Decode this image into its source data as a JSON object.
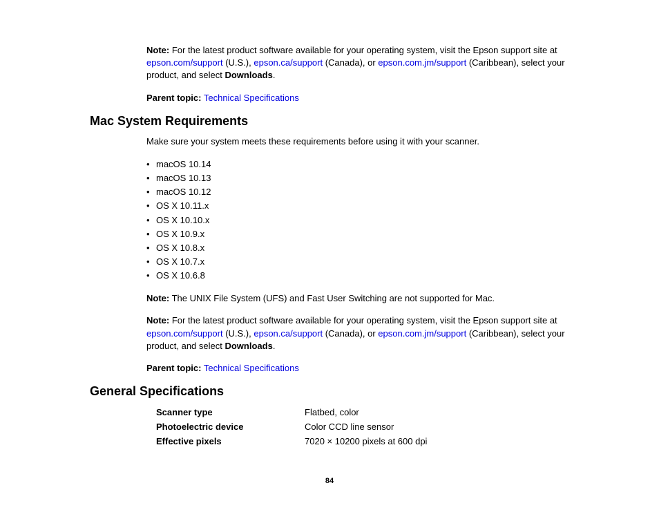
{
  "note1": {
    "label": "Note:",
    "text_before": " For the latest product software available for your operating system, visit the Epson support site at ",
    "link1": "epson.com/support",
    "us": " (U.S.), ",
    "link2": "epson.ca/support",
    "ca": " (Canada), or ",
    "link3": "epson.com.jm/support",
    "cb": " (Caribbean), select your product, and select ",
    "dl": "Downloads",
    "period": "."
  },
  "parent1": {
    "label": "Parent topic:",
    "link": "Technical Specifications"
  },
  "heading1": "Mac System Requirements",
  "intro1": "Make sure your system meets these requirements before using it with your scanner.",
  "os_list": [
    "macOS 10.14",
    "macOS 10.13",
    "macOS 10.12",
    "OS X 10.11.x",
    "OS X 10.10.x",
    "OS X 10.9.x",
    "OS X 10.8.x",
    "OS X 10.7.x",
    "OS X 10.6.8"
  ],
  "note2": {
    "label": "Note:",
    "text": " The UNIX File System (UFS) and Fast User Switching are not supported for Mac."
  },
  "note3": {
    "label": "Note:",
    "text_before": " For the latest product software available for your operating system, visit the Epson support site at ",
    "link1": "epson.com/support",
    "us": " (U.S.), ",
    "link2": "epson.ca/support",
    "ca": " (Canada), or ",
    "link3": "epson.com.jm/support",
    "cb": " (Caribbean), select your product, and select ",
    "dl": "Downloads",
    "period": "."
  },
  "parent2": {
    "label": "Parent topic:",
    "link": "Technical Specifications"
  },
  "heading2": "General Specifications",
  "specs": [
    {
      "label": "Scanner type",
      "value": "Flatbed, color"
    },
    {
      "label": "Photoelectric device",
      "value": "Color CCD line sensor"
    },
    {
      "label": "Effective pixels",
      "value": "7020 × 10200 pixels at 600 dpi"
    }
  ],
  "page_number": "84"
}
